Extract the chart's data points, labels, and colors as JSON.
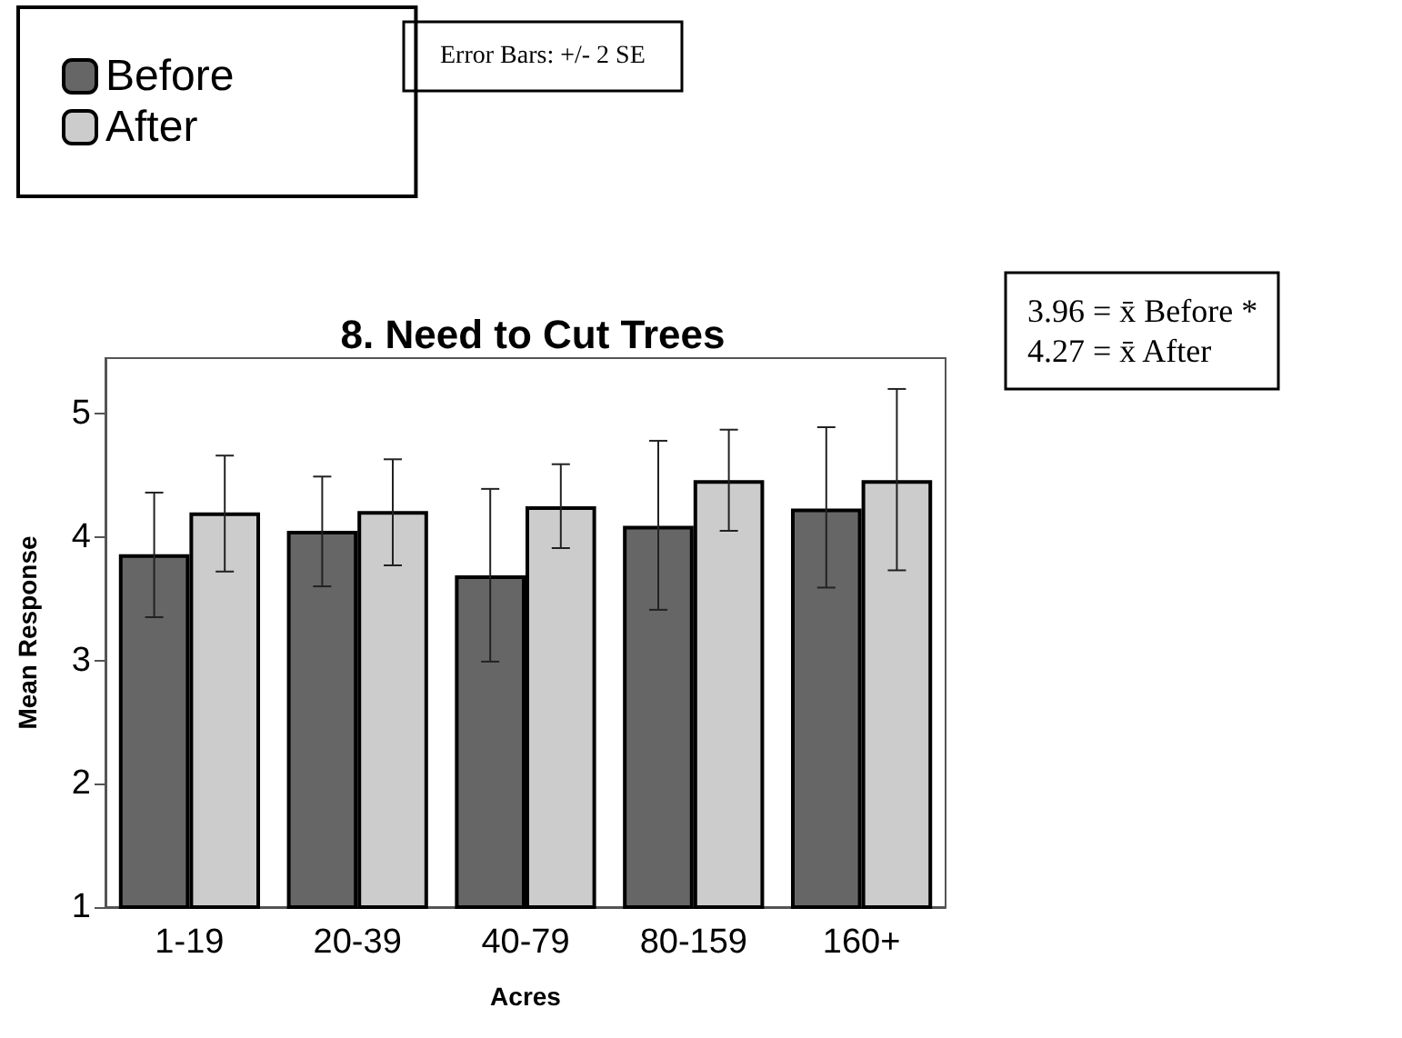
{
  "chart_data": {
    "type": "bar",
    "title": "8. Need to Cut Trees",
    "xlabel": "Acres",
    "ylabel": "Mean Response",
    "categories": [
      "1-19",
      "20-39",
      "40-79",
      "80-159",
      "160+"
    ],
    "series": [
      {
        "name": "Before",
        "color": "#666666",
        "values": [
          3.86,
          4.05,
          3.69,
          4.09,
          4.23
        ],
        "errors": [
          [
            3.35,
            4.36
          ],
          [
            3.6,
            4.49
          ],
          [
            2.99,
            4.39
          ],
          [
            3.41,
            4.78
          ],
          [
            3.59,
            4.89
          ]
        ]
      },
      {
        "name": "After",
        "color": "#cccccc",
        "values": [
          4.2,
          4.21,
          4.25,
          4.46,
          4.46
        ],
        "errors": [
          [
            3.72,
            4.66
          ],
          [
            3.77,
            4.63
          ],
          [
            3.91,
            4.59
          ],
          [
            4.05,
            4.87
          ],
          [
            3.73,
            5.2
          ]
        ]
      }
    ],
    "ylim": [
      1,
      5.45
    ],
    "yticks": [
      1,
      2,
      3,
      4,
      5
    ],
    "grid": false,
    "legend": "top left",
    "annotations": [
      "Error Bars: +/- 2 SE",
      "3.96 = x̄ Before *",
      "4.27 = x̄ After"
    ]
  }
}
